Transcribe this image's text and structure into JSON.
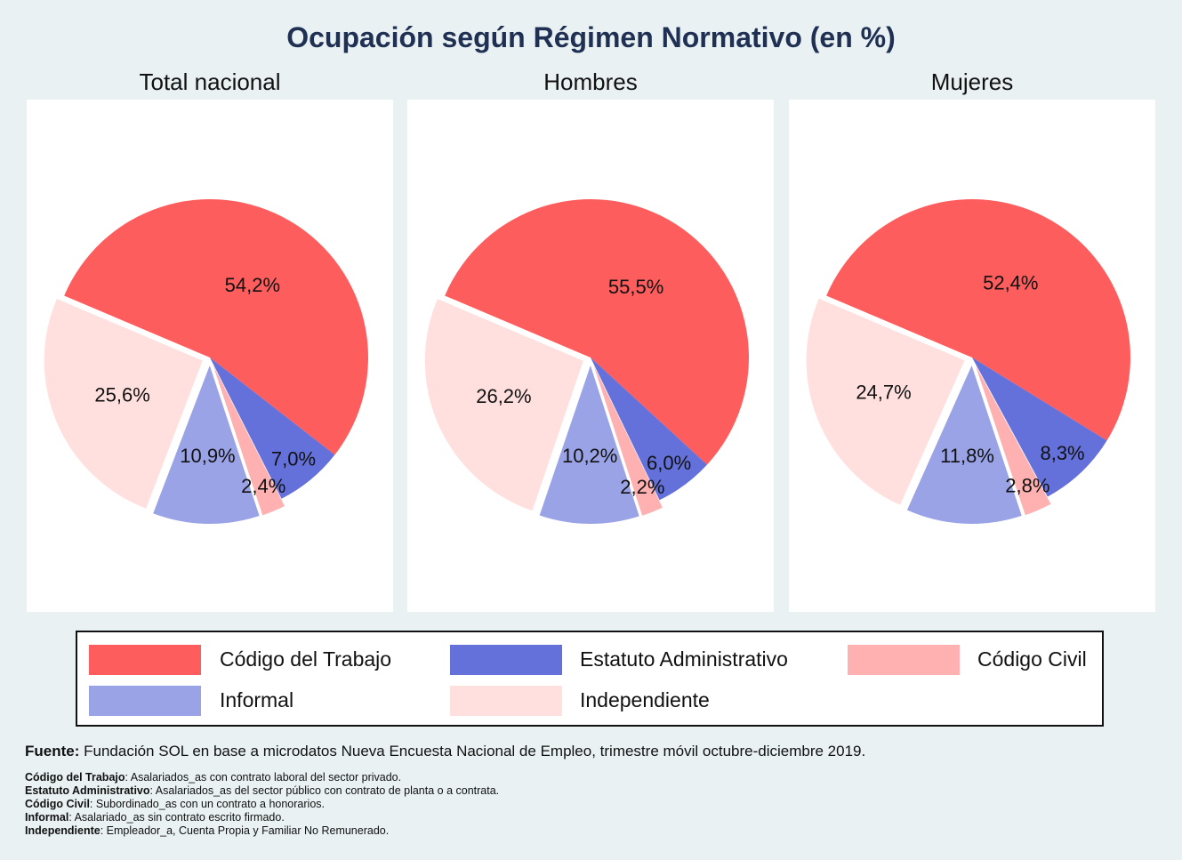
{
  "title": "Ocupación según Régimen Normativo (en %)",
  "colors": {
    "codigo_trabajo": "#fe5d5d",
    "estatuto_administrativo": "#6471db",
    "codigo_civil": "#ffb0b0",
    "informal": "#99a3e6",
    "independiente": "#ffe0de",
    "title": "#1f3053",
    "background": "#e9f1f3"
  },
  "legend": [
    {
      "key": "codigo_trabajo",
      "label": "Código del Trabajo"
    },
    {
      "key": "estatuto_administrativo",
      "label": "Estatuto Administrativo"
    },
    {
      "key": "codigo_civil",
      "label": "Código Civil"
    },
    {
      "key": "informal",
      "label": "Informal"
    },
    {
      "key": "independiente",
      "label": "Independiente"
    }
  ],
  "chart_data": [
    {
      "type": "pie",
      "title": "Total nacional",
      "categories": [
        "Código del Trabajo",
        "Estatuto Administrativo",
        "Código Civil",
        "Informal",
        "Independiente"
      ],
      "values": [
        54.2,
        7.0,
        2.4,
        10.9,
        25.6
      ],
      "labels": [
        "54,2%",
        "7,0%",
        "2,4%",
        "10,9%",
        "25,6%"
      ]
    },
    {
      "type": "pie",
      "title": "Hombres",
      "categories": [
        "Código del Trabajo",
        "Estatuto Administrativo",
        "Código Civil",
        "Informal",
        "Independiente"
      ],
      "values": [
        55.5,
        6.0,
        2.2,
        10.2,
        26.2
      ],
      "labels": [
        "55,5%",
        "6,0%",
        "2,2%",
        "10,2%",
        "26,2%"
      ]
    },
    {
      "type": "pie",
      "title": "Mujeres",
      "categories": [
        "Código del Trabajo",
        "Estatuto Administrativo",
        "Código Civil",
        "Informal",
        "Independiente"
      ],
      "values": [
        52.4,
        8.3,
        2.8,
        11.8,
        24.7
      ],
      "labels": [
        "52,4%",
        "8,3%",
        "2,8%",
        "11,8%",
        "24,7%"
      ]
    }
  ],
  "source": {
    "label": "Fuente:",
    "text": " Fundación SOL en base a microdatos Nueva Encuesta Nacional de Empleo, trimestre móvil octubre-diciembre 2019."
  },
  "notes": [
    {
      "term": "Código del Trabajo",
      "text": ": Asalariados_as con contrato laboral del sector privado."
    },
    {
      "term": "Estatuto Administrativo",
      "text": ": Asalariados_as del sector público con contrato de planta o a contrata."
    },
    {
      "term": "Código Civil",
      "text": ": Subordinado_as con un contrato a honorarios."
    },
    {
      "term": "Informal",
      "text": ": Asalariado_as sin contrato escrito firmado."
    },
    {
      "term": "Independiente",
      "text": ": Empleador_a, Cuenta Propia y Familiar No Remunerado."
    }
  ]
}
